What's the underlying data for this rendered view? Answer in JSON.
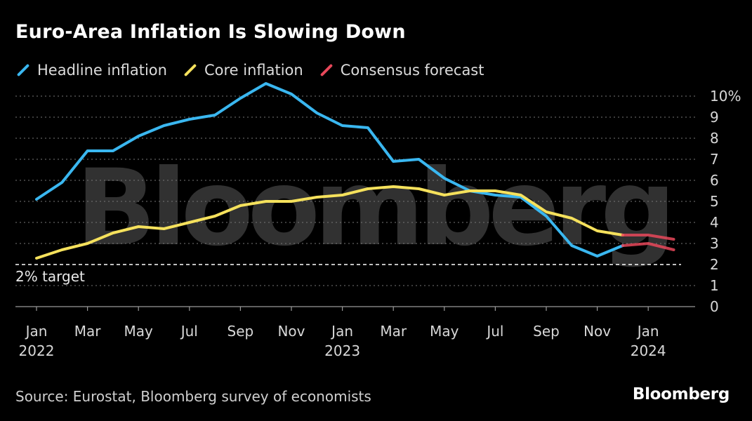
{
  "header": {
    "title": "Euro-Area Inflation Is Slowing Down"
  },
  "legend": [
    {
      "label": "Headline inflation",
      "color": "#3ab7f0"
    },
    {
      "label": "Core inflation",
      "color": "#f5e15c"
    },
    {
      "label": "Consensus forecast",
      "color": "#e8485a"
    }
  ],
  "footer": {
    "source": "Source: Eurostat, Bloomberg survey of economists",
    "brand": "Bloomberg"
  },
  "watermark": "Bloomberg",
  "chart_data": {
    "type": "line",
    "title": "Euro-Area Inflation Is Slowing Down",
    "xlabel": "",
    "ylabel": "",
    "ylim": [
      0,
      10.5
    ],
    "y_ticks": [
      {
        "value": 10,
        "label": "10%"
      },
      {
        "value": 9,
        "label": "9"
      },
      {
        "value": 8,
        "label": "8"
      },
      {
        "value": 7,
        "label": "7"
      },
      {
        "value": 6,
        "label": "6"
      },
      {
        "value": 5,
        "label": "5"
      },
      {
        "value": 4,
        "label": "4"
      },
      {
        "value": 3,
        "label": "3"
      },
      {
        "value": 2,
        "label": "2"
      },
      {
        "value": 1,
        "label": "1"
      },
      {
        "value": 0,
        "label": "0"
      }
    ],
    "x_ticks": [
      {
        "index": 0,
        "label": "Jan"
      },
      {
        "index": 2,
        "label": "Mar"
      },
      {
        "index": 4,
        "label": "May"
      },
      {
        "index": 6,
        "label": "Jul"
      },
      {
        "index": 8,
        "label": "Sep"
      },
      {
        "index": 10,
        "label": "Nov"
      },
      {
        "index": 12,
        "label": "Jan"
      },
      {
        "index": 14,
        "label": "Mar"
      },
      {
        "index": 16,
        "label": "May"
      },
      {
        "index": 18,
        "label": "Jul"
      },
      {
        "index": 20,
        "label": "Sep"
      },
      {
        "index": 22,
        "label": "Nov"
      },
      {
        "index": 24,
        "label": "Jan"
      }
    ],
    "year_labels": [
      {
        "index": 0,
        "label": "2022"
      },
      {
        "index": 12,
        "label": "2023"
      },
      {
        "index": 24,
        "label": "2024"
      }
    ],
    "target": {
      "value": 2,
      "label": "2% target"
    },
    "x_range": [
      0,
      25
    ],
    "series": [
      {
        "name": "Headline inflation",
        "color": "#3ab7f0",
        "start_index": 0,
        "values": [
          5.1,
          5.9,
          7.4,
          7.4,
          8.1,
          8.6,
          8.9,
          9.1,
          9.9,
          10.6,
          10.1,
          9.2,
          8.6,
          8.5,
          6.9,
          7.0,
          6.1,
          5.5,
          5.3,
          5.2,
          4.3,
          2.9,
          2.4,
          2.9
        ]
      },
      {
        "name": "Core inflation",
        "color": "#f5e15c",
        "start_index": 0,
        "values": [
          2.3,
          2.7,
          3.0,
          3.5,
          3.8,
          3.7,
          4.0,
          4.3,
          4.8,
          5.0,
          5.0,
          5.2,
          5.3,
          5.6,
          5.7,
          5.6,
          5.3,
          5.5,
          5.5,
          5.3,
          4.5,
          4.2,
          3.6,
          3.4
        ]
      },
      {
        "name": "Consensus forecast (headline)",
        "color": "#e8485a",
        "start_index": 23,
        "values": [
          2.9,
          3.0,
          2.7
        ]
      },
      {
        "name": "Consensus forecast (core)",
        "color": "#e8485a",
        "start_index": 23,
        "values": [
          3.4,
          3.4,
          3.2
        ]
      }
    ]
  }
}
